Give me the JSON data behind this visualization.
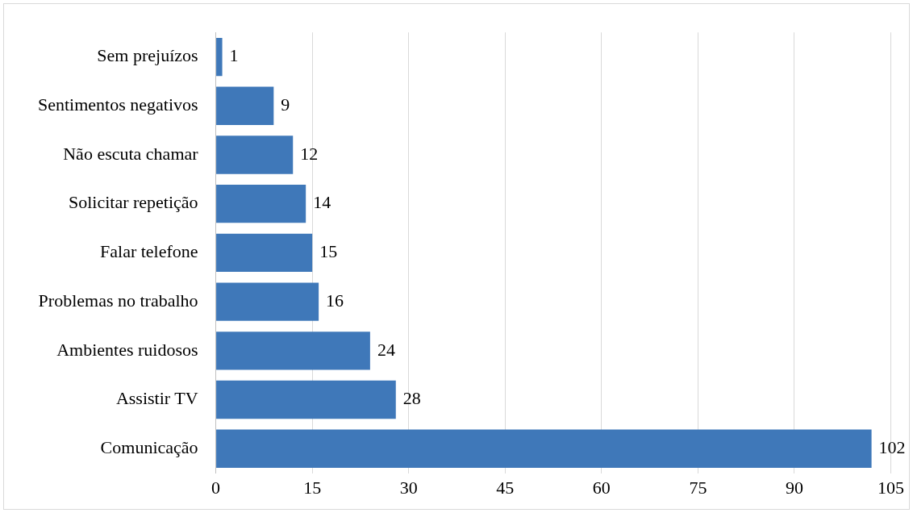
{
  "chart_data": {
    "type": "bar",
    "orientation": "horizontal",
    "categories": [
      "Sem prejuízos",
      "Sentimentos negativos",
      "Não escuta chamar",
      "Solicitar repetição",
      "Falar telefone",
      "Problemas no trabalho",
      "Ambientes ruidosos",
      "Assistir TV",
      "Comunicação"
    ],
    "values": [
      1,
      9,
      12,
      14,
      15,
      16,
      24,
      28,
      102
    ],
    "color": "#3f78b9",
    "xlim": [
      0,
      105
    ],
    "xticks": [
      0,
      15,
      30,
      45,
      60,
      75,
      90,
      105
    ],
    "grid": "x",
    "data_labels": true,
    "legend": false
  }
}
